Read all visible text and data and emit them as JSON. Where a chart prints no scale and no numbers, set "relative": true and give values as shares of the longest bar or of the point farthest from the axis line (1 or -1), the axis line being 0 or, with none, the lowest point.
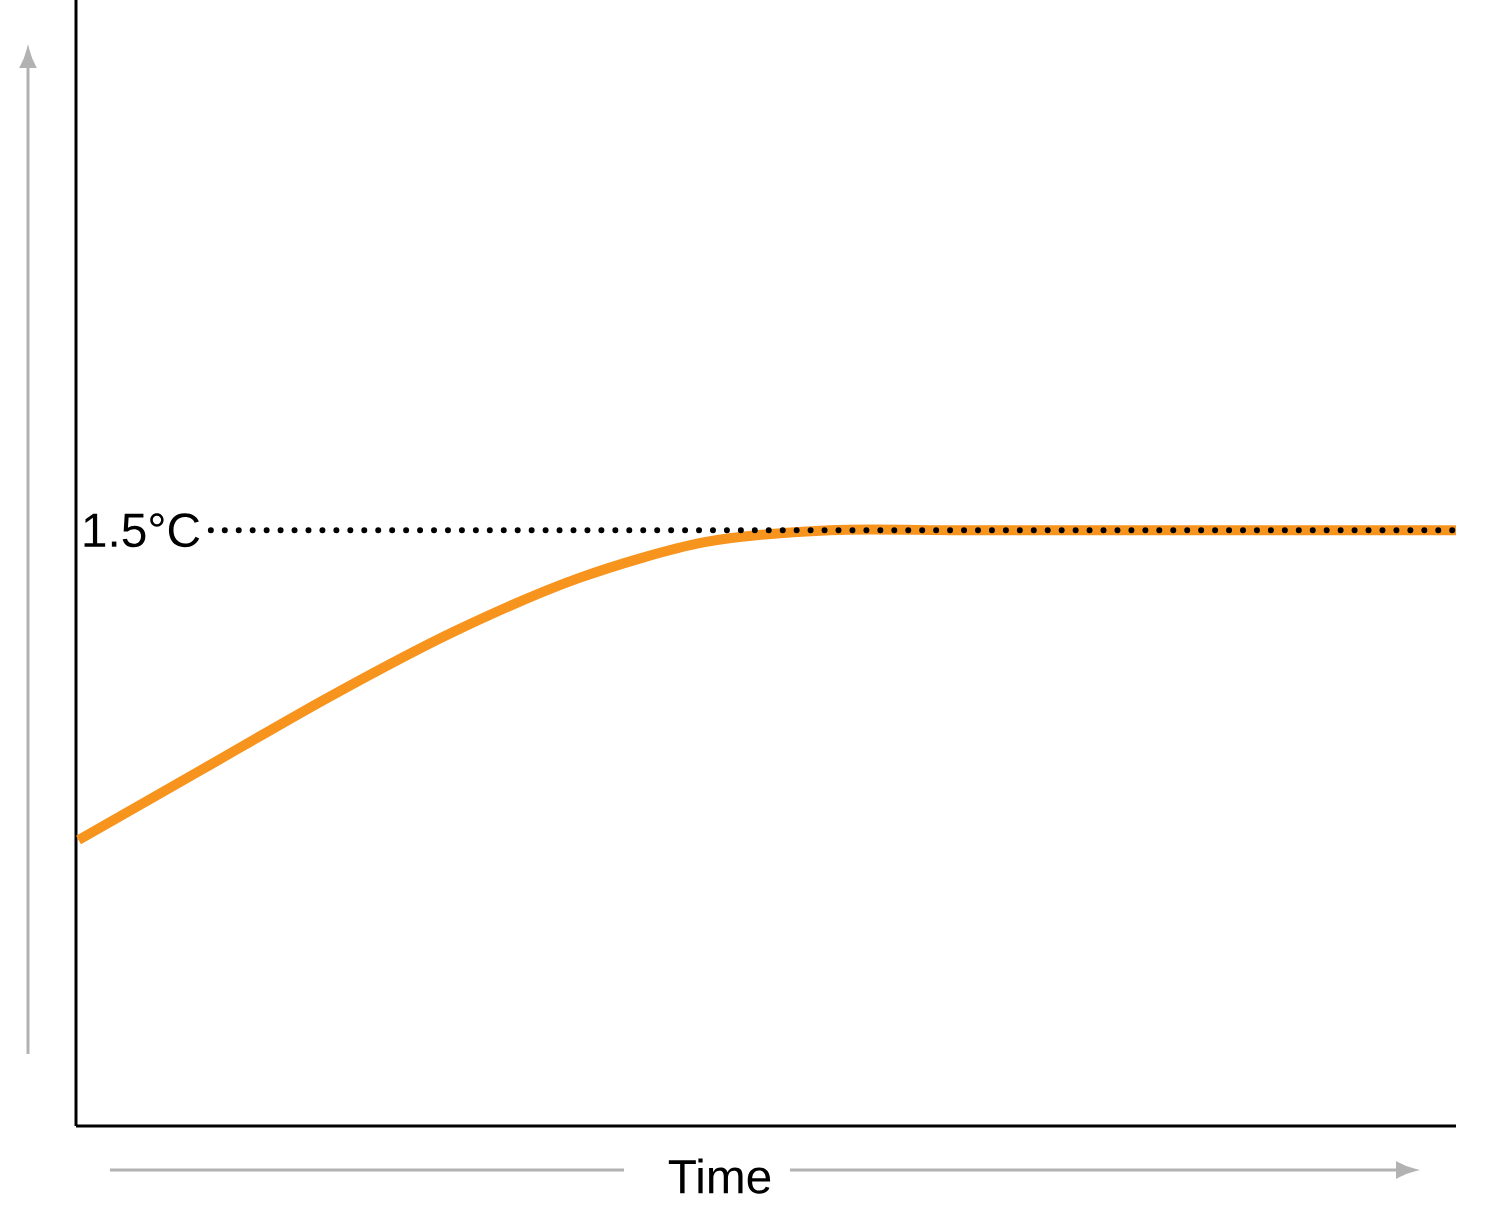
{
  "chart_data": {
    "type": "line",
    "relative": true,
    "xlabel": "Time",
    "color": "#f7941d",
    "categories": [
      null,
      null,
      null,
      null,
      null,
      null,
      null,
      null,
      null,
      null,
      null,
      null
    ],
    "values": [
      0.48,
      0.6,
      0.72,
      0.83,
      0.92,
      0.98,
      1,
      1,
      1,
      1,
      1,
      1
    ],
    "ref_lines": [
      {
        "axis": "y",
        "value": 1,
        "label": "1.5°C",
        "color": "#000000",
        "line_style": "dotted"
      }
    ]
  }
}
